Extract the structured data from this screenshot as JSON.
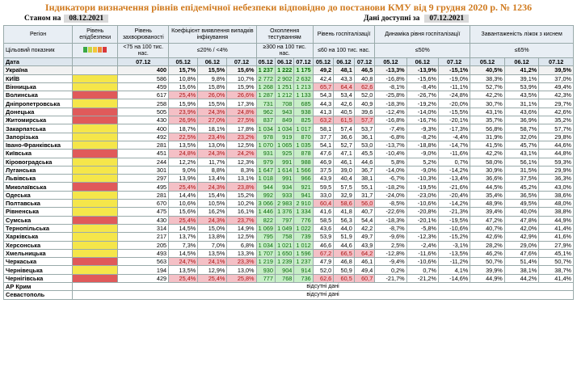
{
  "title": "Індикатори визначення рівнів епідемічної небезпеки відповідно до постанови КМУ від 9 грудня 2020 р. № 1236",
  "status_label": "Станом на",
  "status_date": "08.12.2021",
  "available_label": "Дані доступні за",
  "available_date": "07.12.2021",
  "headers": {
    "region": "Регіон",
    "level": "Рівень епідбезпеки",
    "incidence": "Рівень захворюваності",
    "infection": "Коефіцієнт виявлення випадків інфікування",
    "testing": "Охоплення тестуванням",
    "hosp": "Рівень госпіталізації",
    "dynamics": "Динаміка рівня госпіталізації",
    "beds": "Завантаженість ліжок з киснем",
    "target": "Цільовий показник",
    "t_incidence": "<75 на 100 тис. нас.",
    "t_infection": "≤20% / <4%",
    "t_testing": "≥300 на 100 тис. нас.",
    "t_hosp": "≤60 на 100 тис. нас.",
    "t_dynamics": "≤50%",
    "t_beds": "≤65%",
    "date": "Дата"
  },
  "dates": {
    "one": "07.12",
    "d1": "05.12",
    "d2": "06.12",
    "d3": "07.12"
  },
  "swatch_colors": [
    "#3aa845",
    "#c8d64a",
    "#f2c73a",
    "#ef8a3a",
    "#d9383a"
  ],
  "no_data": "відсутні дані",
  "ukraine": {
    "name": "Україна",
    "inc": "400",
    "inf": [
      "15,7%",
      "15,5%",
      "15,6%"
    ],
    "test": [
      "1 237",
      "1 222",
      "1 175"
    ],
    "hosp": [
      "49,2",
      "48,1",
      "46,5"
    ],
    "dyn": [
      "-13,3%",
      "-13,9%",
      "-15,1%"
    ],
    "beds": [
      "40,5%",
      "41,2%",
      "39,5%"
    ]
  },
  "rows": [
    {
      "name": "КИЇВ",
      "lvl": "y",
      "inc": "586",
      "inf": [
        "10,8%",
        "9,8%",
        "10,7%"
      ],
      "infc": "",
      "test": [
        "2 772",
        "2 902",
        "2 632"
      ],
      "testc": "g",
      "hosp": [
        "42,4",
        "43,3",
        "40,8"
      ],
      "hospc": "",
      "dyn": [
        "-16,8%",
        "-15,6%",
        "-19,0%"
      ],
      "beds": [
        "38,3%",
        "39,1%",
        "37,0%"
      ]
    },
    {
      "name": "Вінницька",
      "lvl": "y",
      "inc": "459",
      "inf": [
        "15,6%",
        "15,8%",
        "15,9%"
      ],
      "infc": "",
      "test": [
        "1 268",
        "1 251",
        "1 213"
      ],
      "testc": "g",
      "hosp": [
        "65,7",
        "64,4",
        "62,6"
      ],
      "hospc": "p",
      "dyn": [
        "-8,1%",
        "-8,4%",
        "-11,1%"
      ],
      "beds": [
        "52,7%",
        "53,9%",
        "49,4%"
      ]
    },
    {
      "name": "Волинська",
      "lvl": "r",
      "inc": "617",
      "inf": [
        "25,4%",
        "26,0%",
        "26,6%"
      ],
      "infc": "p",
      "test": [
        "1 287",
        "1 212",
        "1 133"
      ],
      "testc": "g",
      "hosp": [
        "54,3",
        "53,4",
        "52,0"
      ],
      "hospc": "",
      "dyn": [
        "-25,8%",
        "-26,7%",
        "-24,8%"
      ],
      "beds": [
        "42,2%",
        "43,5%",
        "42,3%"
      ]
    },
    {
      "name": "Дніпропетровська",
      "lvl": "y",
      "inc": "258",
      "inf": [
        "15,9%",
        "15,5%",
        "17,3%"
      ],
      "infc": "",
      "test": [
        "731",
        "708",
        "685"
      ],
      "testc": "g",
      "hosp": [
        "44,3",
        "42,6",
        "40,9"
      ],
      "hospc": "",
      "dyn": [
        "-18,3%",
        "-19,2%",
        "-20,0%"
      ],
      "beds": [
        "30,7%",
        "31,1%",
        "29,7%"
      ]
    },
    {
      "name": "Донецька",
      "lvl": "r",
      "inc": "505",
      "inf": [
        "23,9%",
        "24,3%",
        "24,8%"
      ],
      "infc": "p",
      "test": [
        "962",
        "943",
        "938"
      ],
      "testc": "g",
      "hosp": [
        "41,3",
        "40,5",
        "39,6"
      ],
      "hospc": "",
      "dyn": [
        "-12,4%",
        "-14,0%",
        "-15,5%"
      ],
      "beds": [
        "43,1%",
        "43,6%",
        "42,6%"
      ]
    },
    {
      "name": "Житомирська",
      "lvl": "r",
      "inc": "430",
      "inf": [
        "26,9%",
        "27,0%",
        "27,5%"
      ],
      "infc": "p",
      "test": [
        "837",
        "849",
        "825"
      ],
      "testc": "g",
      "hosp": [
        "63,2",
        "61,5",
        "57,7"
      ],
      "hospc": "p",
      "dyn": [
        "-16,8%",
        "-16,7%",
        "-20,1%"
      ],
      "beds": [
        "35,7%",
        "36,9%",
        "35,2%"
      ]
    },
    {
      "name": "Закарпатська",
      "lvl": "y",
      "inc": "400",
      "inf": [
        "18,7%",
        "18,1%",
        "17,8%"
      ],
      "infc": "",
      "test": [
        "1 034",
        "1 034",
        "1 017"
      ],
      "testc": "g",
      "hosp": [
        "58,1",
        "57,4",
        "53,7"
      ],
      "hospc": "",
      "dyn": [
        "-7,4%",
        "-9,3%",
        "-17,3%"
      ],
      "beds": [
        "56,8%",
        "58,7%",
        "57,7%"
      ]
    },
    {
      "name": "Запорізька",
      "lvl": "y",
      "inc": "492",
      "inf": [
        "22,5%",
        "23,4%",
        "23,2%"
      ],
      "infc": "p",
      "test": [
        "978",
        "919",
        "870"
      ],
      "testc": "g",
      "hosp": [
        "37,7",
        "36,6",
        "36,1"
      ],
      "hospc": "",
      "dyn": [
        "-6,8%",
        "-8,2%",
        "-4,4%"
      ],
      "beds": [
        "31,9%",
        "32,0%",
        "29,8%"
      ]
    },
    {
      "name": "Івано-Франківська",
      "lvl": "y",
      "inc": "281",
      "inf": [
        "13,5%",
        "13,0%",
        "12,5%"
      ],
      "infc": "",
      "test": [
        "1 070",
        "1 065",
        "1 035"
      ],
      "testc": "g",
      "hosp": [
        "54,1",
        "52,7",
        "53,0"
      ],
      "hospc": "",
      "dyn": [
        "-13,7%",
        "-18,8%",
        "-14,7%"
      ],
      "beds": [
        "41,5%",
        "45,7%",
        "44,6%"
      ]
    },
    {
      "name": "Київська",
      "lvl": "r",
      "inc": "451",
      "inf": [
        "24,8%",
        "24,3%",
        "24,2%"
      ],
      "infc": "p",
      "test": [
        "931",
        "925",
        "878"
      ],
      "testc": "g",
      "hosp": [
        "47,6",
        "47,1",
        "45,5"
      ],
      "hospc": "",
      "dyn": [
        "-10,4%",
        "-9,0%",
        "-11,6%"
      ],
      "beds": [
        "42,2%",
        "43,1%",
        "44,8%"
      ]
    },
    {
      "name": "Кіровоградська",
      "lvl": "y",
      "inc": "244",
      "inf": [
        "12,2%",
        "11,7%",
        "12,3%"
      ],
      "infc": "",
      "test": [
        "979",
        "991",
        "988"
      ],
      "testc": "g",
      "hosp": [
        "46,9",
        "46,1",
        "44,6"
      ],
      "hospc": "",
      "dyn": [
        "5,8%",
        "5,2%",
        "0,7%"
      ],
      "beds": [
        "58,0%",
        "56,1%",
        "59,3%"
      ]
    },
    {
      "name": "Луганська",
      "lvl": "y",
      "inc": "301",
      "inf": [
        "9,0%",
        "8,8%",
        "8,3%"
      ],
      "infc": "",
      "test": [
        "1 647",
        "1 614",
        "1 566"
      ],
      "testc": "g",
      "hosp": [
        "37,5",
        "39,0",
        "36,7"
      ],
      "hospc": "",
      "dyn": [
        "-14,0%",
        "-9,0%",
        "-14,2%"
      ],
      "beds": [
        "30,9%",
        "31,5%",
        "29,9%"
      ]
    },
    {
      "name": "Львівська",
      "lvl": "y",
      "inc": "297",
      "inf": [
        "13,9%",
        "13,4%",
        "13,1%"
      ],
      "infc": "",
      "test": [
        "1 018",
        "991",
        "966"
      ],
      "testc": "g",
      "hosp": [
        "43,9",
        "40,4",
        "38,1"
      ],
      "hospc": "",
      "dyn": [
        "-6,7%",
        "-10,3%",
        "-13,4%"
      ],
      "beds": [
        "36,6%",
        "37,5%",
        "36,3%"
      ]
    },
    {
      "name": "Миколаївська",
      "lvl": "r",
      "inc": "495",
      "inf": [
        "25,4%",
        "24,3%",
        "23,8%"
      ],
      "infc": "p",
      "test": [
        "944",
        "934",
        "921"
      ],
      "testc": "g",
      "hosp": [
        "59,5",
        "57,5",
        "55,1"
      ],
      "hospc": "",
      "dyn": [
        "-18,2%",
        "-19,5%",
        "-21,6%"
      ],
      "beds": [
        "44,5%",
        "45,2%",
        "43,0%"
      ]
    },
    {
      "name": "Одеська",
      "lvl": "y",
      "inc": "281",
      "inf": [
        "14,4%",
        "15,4%",
        "15,2%"
      ],
      "infc": "",
      "test": [
        "992",
        "933",
        "941"
      ],
      "testc": "g",
      "hosp": [
        "33,0",
        "32,9",
        "31,7"
      ],
      "hospc": "",
      "dyn": [
        "-24,0%",
        "-23,0%",
        "-20,4%"
      ],
      "beds": [
        "35,4%",
        "36,5%",
        "38,6%"
      ]
    },
    {
      "name": "Полтавська",
      "lvl": "y",
      "inc": "670",
      "inf": [
        "10,6%",
        "10,5%",
        "10,2%"
      ],
      "infc": "",
      "test": [
        "3 066",
        "2 983",
        "2 910"
      ],
      "testc": "g",
      "hosp": [
        "60,4",
        "58,6",
        "56,0"
      ],
      "hospc": "p",
      "dyn": [
        "-8,5%",
        "-10,6%",
        "-14,2%"
      ],
      "beds": [
        "48,9%",
        "49,5%",
        "48,0%"
      ]
    },
    {
      "name": "Рівненська",
      "lvl": "y",
      "inc": "475",
      "inf": [
        "15,6%",
        "16,2%",
        "16,1%"
      ],
      "infc": "",
      "test": [
        "1 446",
        "1 376",
        "1 334"
      ],
      "testc": "g",
      "hosp": [
        "41,6",
        "41,8",
        "40,7"
      ],
      "hospc": "",
      "dyn": [
        "-22,6%",
        "-20,8%",
        "-21,3%"
      ],
      "beds": [
        "39,4%",
        "40,0%",
        "38,8%"
      ]
    },
    {
      "name": "Сумська",
      "lvl": "r",
      "inc": "430",
      "inf": [
        "25,4%",
        "24,3%",
        "23,7%"
      ],
      "infc": "p",
      "test": [
        "822",
        "797",
        "776"
      ],
      "testc": "g",
      "hosp": [
        "58,5",
        "56,3",
        "54,4"
      ],
      "hospc": "",
      "dyn": [
        "-18,3%",
        "-20,1%",
        "-19,5%"
      ],
      "beds": [
        "47,2%",
        "47,8%",
        "44,9%"
      ]
    },
    {
      "name": "Тернопільська",
      "lvl": "y",
      "inc": "314",
      "inf": [
        "14,5%",
        "15,0%",
        "14,9%"
      ],
      "infc": "",
      "test": [
        "1 069",
        "1 049",
        "1 022"
      ],
      "testc": "g",
      "hosp": [
        "43,6",
        "44,0",
        "42,2"
      ],
      "hospc": "",
      "dyn": [
        "-8,7%",
        "-5,8%",
        "-10,6%"
      ],
      "beds": [
        "40,7%",
        "42,0%",
        "41,4%"
      ]
    },
    {
      "name": "Харківська",
      "lvl": "y",
      "inc": "217",
      "inf": [
        "13,7%",
        "13,8%",
        "12,5%"
      ],
      "infc": "",
      "test": [
        "795",
        "758",
        "739"
      ],
      "testc": "g",
      "hosp": [
        "53,9",
        "51,9",
        "49,7"
      ],
      "hospc": "",
      "dyn": [
        "-9,6%",
        "-12,3%",
        "-15,2%"
      ],
      "beds": [
        "42,6%",
        "42,9%",
        "41,6%"
      ]
    },
    {
      "name": "Херсонська",
      "lvl": "y",
      "inc": "205",
      "inf": [
        "7,3%",
        "7,0%",
        "6,8%"
      ],
      "infc": "",
      "test": [
        "1 034",
        "1 021",
        "1 012"
      ],
      "testc": "g",
      "hosp": [
        "46,6",
        "44,6",
        "43,9"
      ],
      "hospc": "",
      "dyn": [
        "2,5%",
        "-2,4%",
        "-3,1%"
      ],
      "beds": [
        "28,2%",
        "29,0%",
        "27,9%"
      ]
    },
    {
      "name": "Хмельницька",
      "lvl": "y",
      "inc": "493",
      "inf": [
        "14,5%",
        "13,5%",
        "13,3%"
      ],
      "infc": "",
      "test": [
        "1 707",
        "1 650",
        "1 596"
      ],
      "testc": "g",
      "hosp": [
        "67,2",
        "66,5",
        "64,2"
      ],
      "hospc": "p",
      "dyn": [
        "-12,8%",
        "-11,6%",
        "-13,5%"
      ],
      "beds": [
        "46,2%",
        "47,6%",
        "45,1%"
      ]
    },
    {
      "name": "Черкаська",
      "lvl": "r",
      "inc": "563",
      "inf": [
        "24,7%",
        "24,1%",
        "23,3%"
      ],
      "infc": "p",
      "test": [
        "1 219",
        "1 239",
        "1 237"
      ],
      "testc": "g",
      "hosp": [
        "47,9",
        "46,8",
        "46,1"
      ],
      "hospc": "",
      "dyn": [
        "-9,4%",
        "-10,6%",
        "-11,2%"
      ],
      "beds": [
        "50,7%",
        "51,4%",
        "50,7%"
      ]
    },
    {
      "name": "Чернівецька",
      "lvl": "y",
      "inc": "194",
      "inf": [
        "13,5%",
        "12,9%",
        "13,0%"
      ],
      "infc": "",
      "test": [
        "930",
        "904",
        "914"
      ],
      "testc": "g",
      "hosp": [
        "52,0",
        "50,9",
        "49,4"
      ],
      "hospc": "",
      "dyn": [
        "0,2%",
        "0,7%",
        "4,1%"
      ],
      "beds": [
        "39,9%",
        "38,1%",
        "38,7%"
      ]
    },
    {
      "name": "Чернігівська",
      "lvl": "r",
      "inc": "429",
      "inf": [
        "25,4%",
        "25,4%",
        "25,8%"
      ],
      "infc": "p",
      "test": [
        "777",
        "768",
        "736"
      ],
      "testc": "g",
      "hosp": [
        "62,6",
        "60,5",
        "60,7"
      ],
      "hospc": "p",
      "dyn": [
        "-21,7%",
        "-21,2%",
        "-14,6%"
      ],
      "beds": [
        "44,9%",
        "44,2%",
        "41,4%"
      ]
    }
  ],
  "nodata_rows": [
    "АР Крим",
    "Севастополь"
  ]
}
